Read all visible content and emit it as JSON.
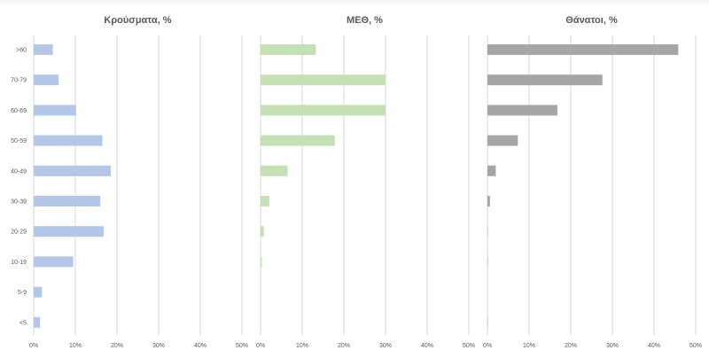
{
  "chart_data": {
    "type": "bar",
    "orientation": "horizontal",
    "categories": [
      ">80",
      "70-79",
      "60-69",
      "50-59",
      "40-49",
      "30-39",
      "20-29",
      "10-19",
      "5-9",
      "<5"
    ],
    "grid": true,
    "legend": "none",
    "panels": [
      {
        "title": "Κρούσματα, %",
        "color": "#b4c7e7",
        "xlim": [
          0,
          50
        ],
        "ticks": [
          "0%",
          "10%",
          "20%",
          "30%",
          "40%",
          "50%"
        ],
        "values": [
          4.6,
          6.0,
          10.2,
          16.5,
          18.5,
          16.0,
          16.8,
          9.5,
          2.0,
          1.5
        ]
      },
      {
        "title": "ΜΕΘ, %",
        "color": "#c5e0b4",
        "xlim": [
          0,
          50
        ],
        "ticks": [
          "0%",
          "10%",
          "20%",
          "30%",
          "40%",
          "50%"
        ],
        "values": [
          13.3,
          30.0,
          29.9,
          17.8,
          6.5,
          2.1,
          0.8,
          0.3,
          0,
          0
        ]
      },
      {
        "title": "Θάνατοι, %",
        "color": "#a6a6a6",
        "xlim": [
          0,
          50
        ],
        "ticks": [
          "0%",
          "10%",
          "20%",
          "30%",
          "40%",
          "50%"
        ],
        "values": [
          45.8,
          27.6,
          16.8,
          7.3,
          2.0,
          0.6,
          0.1,
          0.1,
          0,
          0.1
        ]
      }
    ]
  }
}
